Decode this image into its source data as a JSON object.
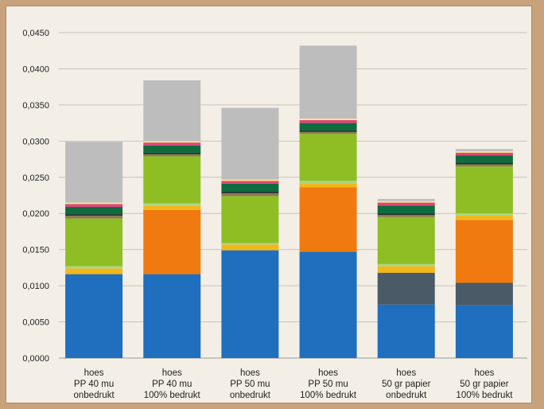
{
  "chart_data": {
    "type": "bar",
    "stacked": true,
    "grid": true,
    "ylim": [
      0,
      0.045
    ],
    "y_ticks": [
      0,
      0.005,
      0.01,
      0.015,
      0.02,
      0.025,
      0.03,
      0.035,
      0.04,
      0.045
    ],
    "y_tick_labels": [
      "0,0000",
      "0,0050",
      "0,0100",
      "0,0150",
      "0,0200",
      "0,0250",
      "0,0300",
      "0,0350",
      "0,0400",
      "0,0450"
    ],
    "title": "",
    "xlabel": "",
    "ylabel": "",
    "categories": [
      [
        "hoes",
        "PP 40 mu",
        "onbedrukt"
      ],
      [
        "hoes",
        "PP 40 mu",
        "100% bedrukt"
      ],
      [
        "hoes",
        "PP 50 mu",
        "onbedrukt"
      ],
      [
        "hoes",
        "PP 50 mu",
        "100% bedrukt"
      ],
      [
        "hoes",
        "50 gr papier",
        "onbedrukt"
      ],
      [
        "hoes",
        "50 gr papier",
        "100% bedrukt"
      ]
    ],
    "series": [
      {
        "color": "#1f6fbe",
        "values": [
          0.0116,
          0.0116,
          0.0149,
          0.0147,
          0.0074,
          0.0073
        ]
      },
      {
        "color": "#4a5a66",
        "values": [
          0,
          0,
          0,
          0,
          0.0044,
          0.0031
        ]
      },
      {
        "color": "#f07a10",
        "values": [
          0,
          0.0089,
          0,
          0.0089,
          0,
          0.0087
        ]
      },
      {
        "color": "#f2b81a",
        "values": [
          0.0008,
          0.0006,
          0.0008,
          0.0006,
          0.0009,
          0.0006
        ]
      },
      {
        "color": "#a9d68a",
        "values": [
          0.0003,
          0.0003,
          0.0002,
          0.0003,
          0.0003,
          0.0003
        ]
      },
      {
        "color": "#8fbe24",
        "values": [
          0.0066,
          0.0065,
          0.0065,
          0.0065,
          0.0065,
          0.0065
        ]
      },
      {
        "color": "#8a7a52",
        "values": [
          0.0004,
          0.0003,
          0.0004,
          0.0003,
          0.0003,
          0.0003
        ]
      },
      {
        "color": "#1d2a2a",
        "values": [
          0.0002,
          0.0002,
          0.0002,
          0.0002,
          0.0002,
          0.0002
        ]
      },
      {
        "color": "#0d6b3e",
        "values": [
          0.001,
          0.001,
          0.0011,
          0.001,
          0.0011,
          0.001
        ]
      },
      {
        "color": "#e0457a",
        "values": [
          0.0004,
          0.0004,
          0.0004,
          0.0004,
          0.0004,
          0.0004
        ]
      },
      {
        "color": "#f3e88a",
        "values": [
          0.0002,
          0.0002,
          0.0002,
          0.0002,
          0.0002,
          0.0002
        ]
      },
      {
        "color": "#bdbdbd",
        "values": [
          0.0084,
          0.0084,
          0.0099,
          0.0101,
          0.0003,
          0.0003
        ]
      }
    ]
  }
}
